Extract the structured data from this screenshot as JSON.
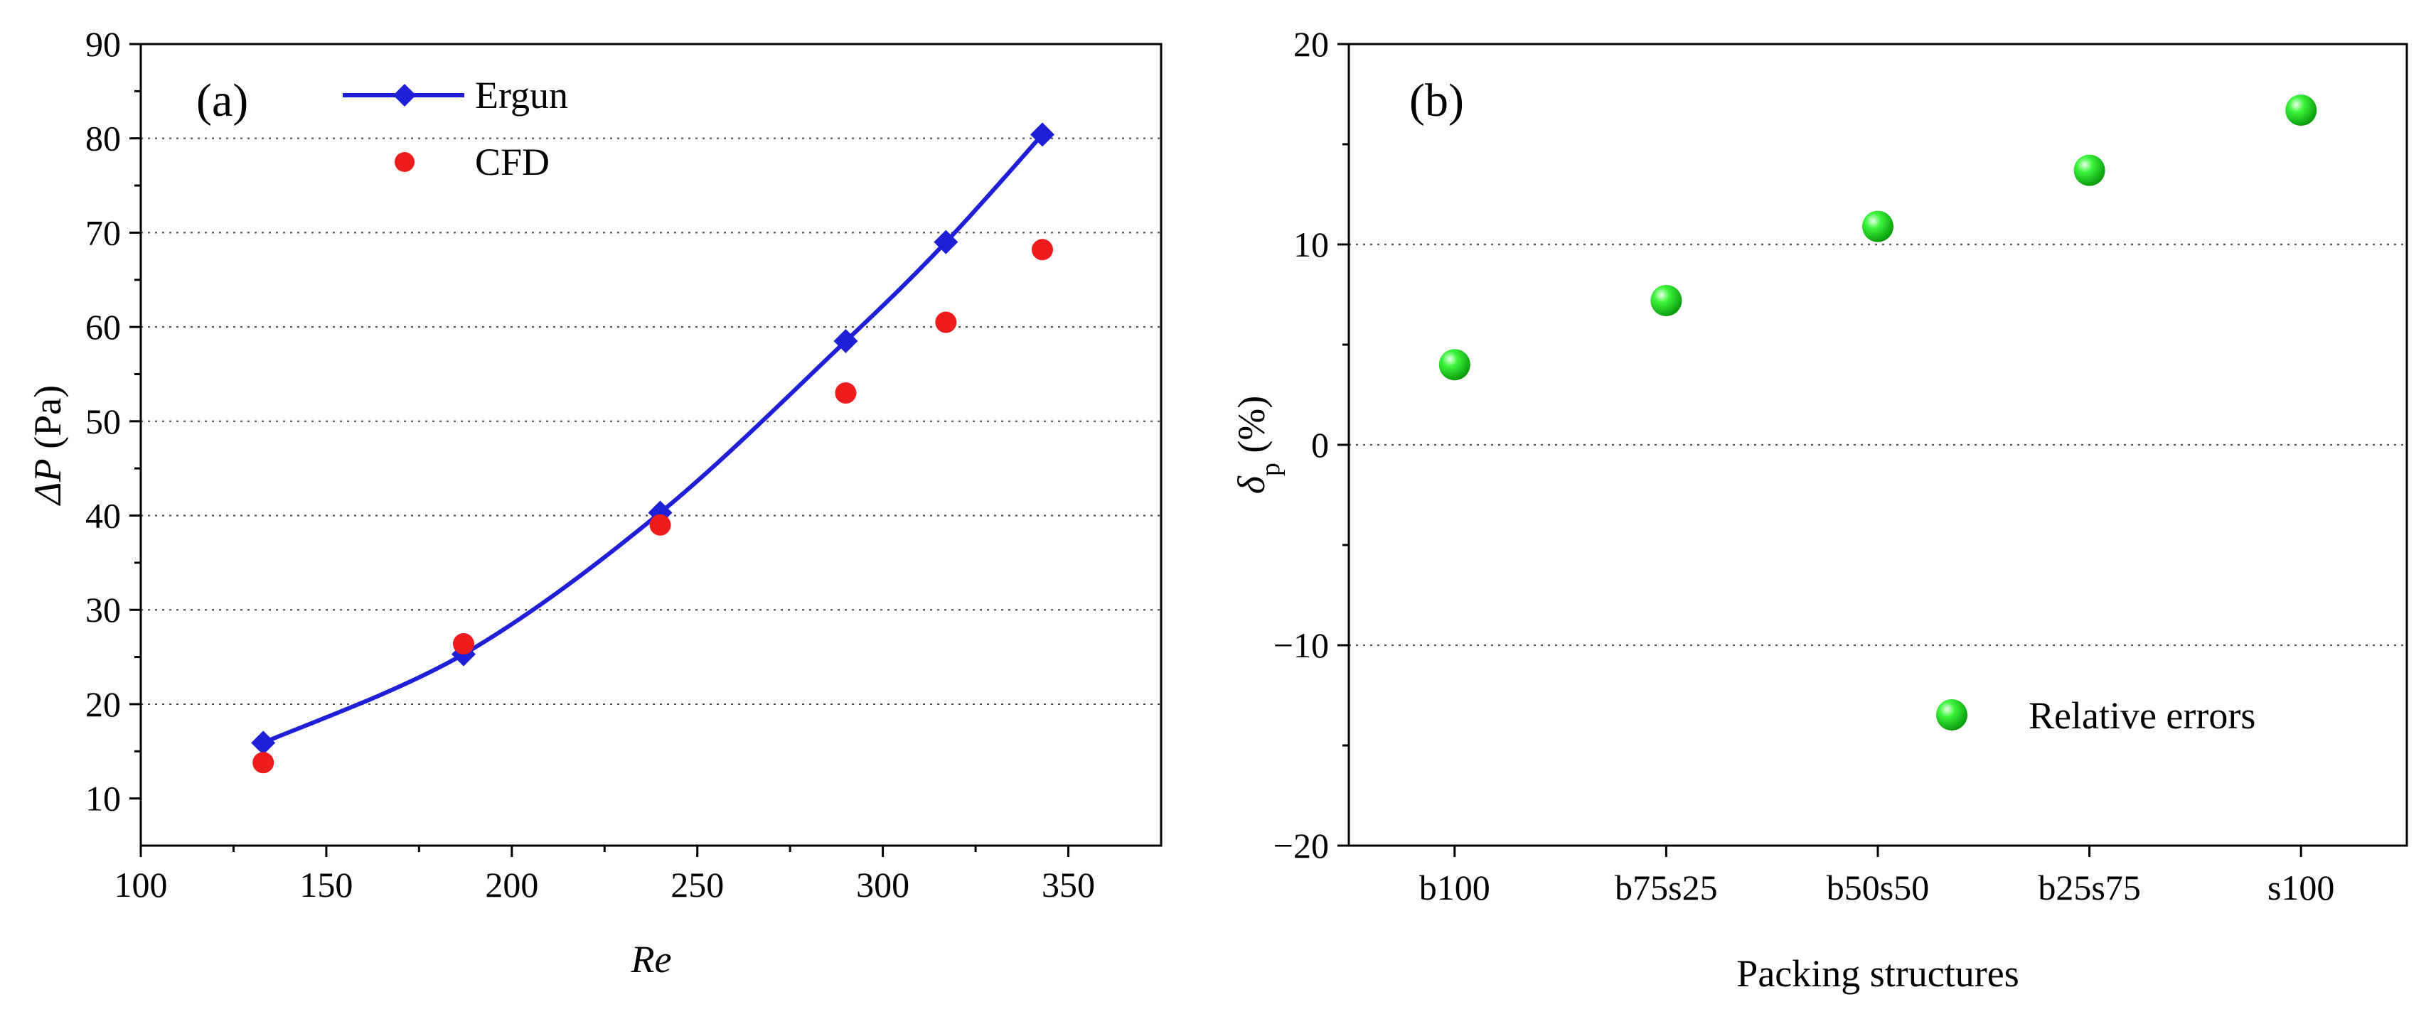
{
  "chart_data": [
    {
      "type": "line",
      "panel_label": "(a)",
      "xlabel": "Re",
      "ylabel_prefix": "ΔP",
      "ylabel_suffix": " (Pa)",
      "xlim": [
        100,
        375
      ],
      "ylim": [
        5,
        90
      ],
      "xticks": [
        100,
        150,
        200,
        250,
        300,
        350
      ],
      "yticks": [
        10,
        20,
        30,
        40,
        50,
        60,
        70,
        80,
        90
      ],
      "grid_y": [
        20,
        30,
        40,
        50,
        60,
        70,
        80
      ],
      "legend_position": "top-left",
      "series": [
        {
          "name": "Ergun",
          "style": "line-diamond",
          "color": "#1f1fd8",
          "x": [
            133,
            187,
            240,
            290,
            317,
            343
          ],
          "y": [
            15.9,
            25.3,
            40.3,
            58.5,
            69.0,
            80.4
          ]
        },
        {
          "name": "CFD",
          "style": "scatter-circle",
          "color": "#ee1c1c",
          "x": [
            133,
            187,
            240,
            290,
            317,
            343
          ],
          "y": [
            13.8,
            26.4,
            39.0,
            53.0,
            60.5,
            68.2
          ]
        }
      ]
    },
    {
      "type": "scatter",
      "panel_label": "(b)",
      "xlabel": "Packing structures",
      "ylabel_symbol": "δ",
      "ylabel_sub": "p",
      "ylabel_suffix": " (%)",
      "categories": [
        "b100",
        "b75s25",
        "b50s50",
        "b25s75",
        "s100"
      ],
      "ylim": [
        -20,
        20
      ],
      "yticks": [
        -20,
        -10,
        0,
        10,
        20
      ],
      "ytick_labels": [
        "−20",
        "−10",
        "0",
        "10",
        "20"
      ],
      "grid_y": [
        -10,
        0,
        10
      ],
      "legend_position": "bottom-right",
      "series": [
        {
          "name": "Relative errors",
          "color": "#22ee22",
          "values": [
            4.0,
            7.2,
            10.9,
            13.7,
            16.7
          ]
        }
      ]
    }
  ]
}
